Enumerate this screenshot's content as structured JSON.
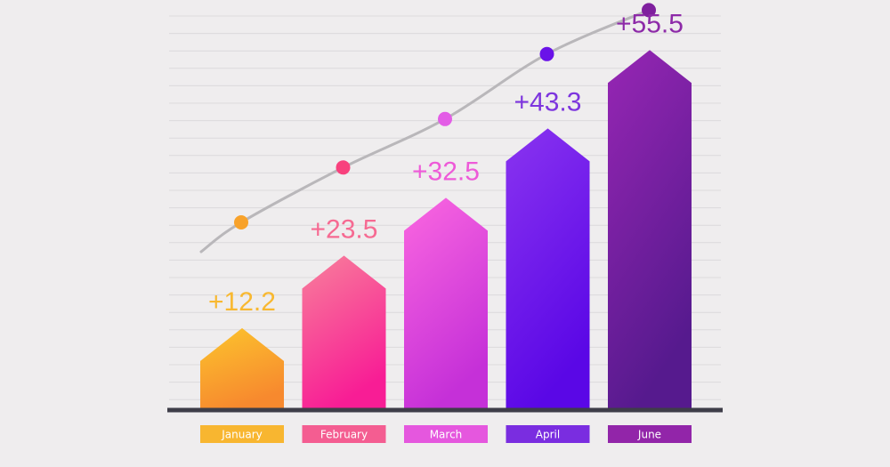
{
  "chart_data": {
    "type": "bar",
    "categories": [
      "January",
      "February",
      "March",
      "April",
      "June"
    ],
    "values": [
      12.2,
      23.5,
      32.5,
      43.3,
      55.5
    ],
    "data_labels": [
      "+12.2",
      "+23.5",
      "+32.5",
      "+43.3",
      "+55.5"
    ],
    "trend_line": true,
    "grid": true,
    "colors": {
      "label_text": [
        "#f8b830",
        "#f66a92",
        "#ee5ad8",
        "#7d35de",
        "#8d2aa8"
      ],
      "label_box": [
        "#f8b630",
        "#f45d91",
        "#e557de",
        "#7a2de0",
        "#9225a9"
      ],
      "bar_top": [
        "#fcc52d",
        "#f8809b",
        "#fb67e0",
        "#8a34f0",
        "#9726b4"
      ],
      "bar_bottom": [
        "#f7892e",
        "#f81d95",
        "#c530d8",
        "#5a07e6",
        "#561a8e"
      ],
      "markers": [
        "#f8a22a",
        "#f8417d",
        "#e35de6",
        "#6a12e8",
        "#7f1f9e"
      ],
      "baseline": "#3e3d48",
      "grid": "#dcdadc",
      "trend": "#b9b7ba"
    }
  }
}
